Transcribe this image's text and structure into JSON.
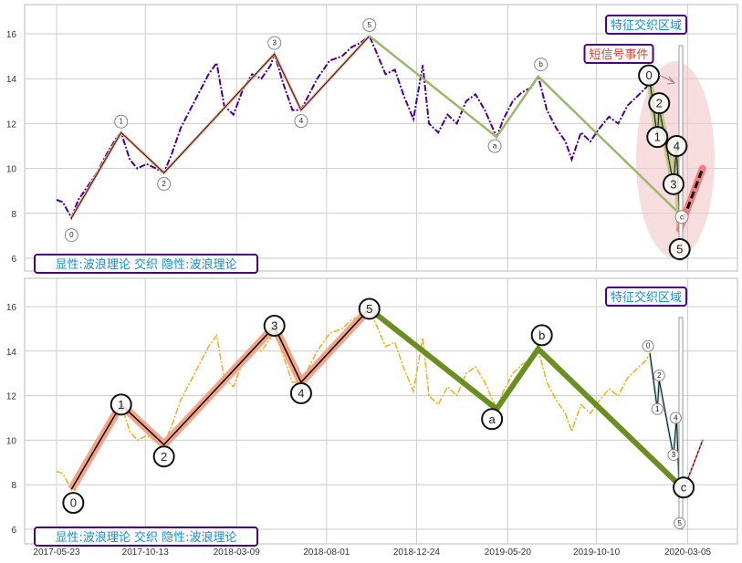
{
  "chart_data": [
    {
      "type": "line",
      "panel": "top",
      "ylim": [
        5.4,
        17.3
      ],
      "y_ticks": [
        6,
        8,
        10,
        12,
        14,
        16
      ],
      "xlim": [
        -51,
        1097
      ],
      "series_color": "#4b0082",
      "annotation_box": "显性:波浪理论 交织 隐性:波浪理论",
      "zone_label": "特征交织区域",
      "event_label": "短信号事件"
    },
    {
      "type": "line",
      "panel": "bottom",
      "ylim": [
        5.4,
        17.3
      ],
      "y_ticks": [
        6,
        8,
        10,
        12,
        14,
        16
      ],
      "xlim": [
        -51,
        1097
      ],
      "series_color": "#ebb12f",
      "annotation_box": "显性:波浪理论 交织 隐性:波浪理论",
      "zone_label": "特征交织区域"
    }
  ],
  "x_ticks": [
    {
      "day": 0,
      "label": "2017-05-23"
    },
    {
      "day": 143,
      "label": "2017-10-13"
    },
    {
      "day": 290,
      "label": "2018-03-09"
    },
    {
      "day": 435,
      "label": "2018-08-01"
    },
    {
      "day": 580,
      "label": "2018-12-24"
    },
    {
      "day": 727,
      "label": "2019-05-20"
    },
    {
      "day": 870,
      "label": "2019-10-10"
    },
    {
      "day": 1017,
      "label": "2020-03-05"
    }
  ],
  "price": [
    [
      0,
      8.6
    ],
    [
      10,
      8.5
    ],
    [
      24,
      7.8
    ],
    [
      35,
      8.6
    ],
    [
      50,
      9.2
    ],
    [
      65,
      9.8
    ],
    [
      80,
      10.6
    ],
    [
      95,
      11.3
    ],
    [
      104,
      11.6
    ],
    [
      118,
      10.4
    ],
    [
      130,
      10.0
    ],
    [
      145,
      10.2
    ],
    [
      160,
      10.0
    ],
    [
      173,
      9.8
    ],
    [
      185,
      10.6
    ],
    [
      200,
      11.8
    ],
    [
      215,
      12.6
    ],
    [
      230,
      13.4
    ],
    [
      245,
      14.2
    ],
    [
      258,
      14.7
    ],
    [
      270,
      12.8
    ],
    [
      285,
      12.4
    ],
    [
      300,
      13.5
    ],
    [
      315,
      14.2
    ],
    [
      330,
      14.0
    ],
    [
      345,
      14.6
    ],
    [
      351,
      15.1
    ],
    [
      365,
      13.8
    ],
    [
      380,
      12.6
    ],
    [
      394,
      12.6
    ],
    [
      405,
      13.2
    ],
    [
      420,
      14.0
    ],
    [
      440,
      14.8
    ],
    [
      460,
      15.0
    ],
    [
      475,
      15.4
    ],
    [
      490,
      15.6
    ],
    [
      504,
      15.9
    ],
    [
      515,
      15.2
    ],
    [
      530,
      14.2
    ],
    [
      545,
      14.4
    ],
    [
      560,
      13.2
    ],
    [
      575,
      12.2
    ],
    [
      590,
      14.6
    ],
    [
      600,
      12.0
    ],
    [
      615,
      11.6
    ],
    [
      630,
      12.4
    ],
    [
      645,
      12.0
    ],
    [
      660,
      13.0
    ],
    [
      675,
      13.3
    ],
    [
      690,
      12.6
    ],
    [
      709,
      11.4
    ],
    [
      720,
      12.2
    ],
    [
      735,
      13.0
    ],
    [
      750,
      13.4
    ],
    [
      765,
      13.6
    ],
    [
      776,
      14.1
    ],
    [
      790,
      12.6
    ],
    [
      805,
      11.8
    ],
    [
      820,
      11.2
    ],
    [
      830,
      10.4
    ],
    [
      845,
      11.6
    ],
    [
      860,
      11.2
    ],
    [
      875,
      11.8
    ],
    [
      890,
      12.3
    ],
    [
      905,
      12.0
    ],
    [
      920,
      12.8
    ],
    [
      935,
      13.2
    ],
    [
      950,
      13.6
    ],
    [
      956,
      13.9
    ],
    [
      968,
      11.4
    ],
    [
      971,
      12.7
    ],
    [
      985,
      10.5
    ],
    [
      994,
      9.3
    ],
    [
      999,
      11.0
    ],
    [
      1004,
      7.3
    ]
  ],
  "long_wave": [
    {
      "label": "0",
      "day": 24,
      "value": 7.8
    },
    {
      "label": "1",
      "day": 104,
      "value": 11.6
    },
    {
      "label": "2",
      "day": 173,
      "value": 9.8
    },
    {
      "label": "3",
      "day": 351,
      "value": 15.1
    },
    {
      "label": "4",
      "day": 394,
      "value": 12.6
    },
    {
      "label": "5",
      "day": 504,
      "value": 15.9
    },
    {
      "label": "a",
      "day": 709,
      "value": 11.4
    },
    {
      "label": "b",
      "day": 776,
      "value": 14.1
    },
    {
      "label": "c",
      "day": 1003,
      "value": 8.0
    }
  ],
  "short_wave": [
    {
      "label": "0",
      "day": 956,
      "value": 13.9
    },
    {
      "label": "1",
      "day": 968,
      "value": 11.4
    },
    {
      "label": "2",
      "day": 971,
      "value": 12.7
    },
    {
      "label": "3",
      "day": 994,
      "value": 9.3
    },
    {
      "label": "4",
      "day": 999,
      "value": 11.0
    },
    {
      "label": "5",
      "day": 1004,
      "value": 7.3
    }
  ],
  "signal_projection": [
    [
      1004,
      7.3
    ],
    [
      1041,
      10.0
    ]
  ],
  "colors": {
    "impulse_outline": "#f2a58a",
    "correction": "#9cb86f",
    "correction_bold": "#6b8e23",
    "zone": "#f4c7c9",
    "box_border": "#4b0082",
    "signal": "#f08080"
  }
}
